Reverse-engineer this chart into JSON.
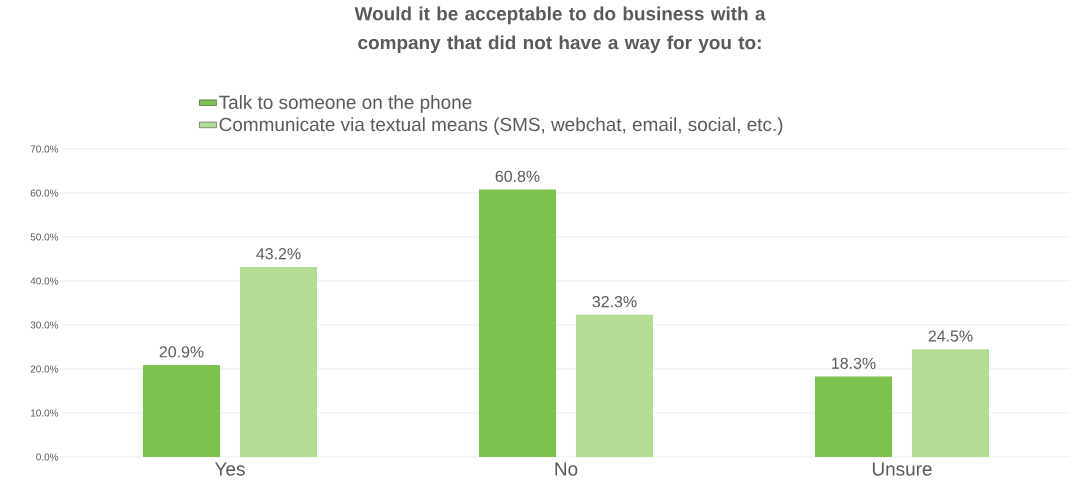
{
  "chart_data": {
    "type": "bar",
    "title": "Would it be acceptable to do business with a company that did not have a way for you to:",
    "categories": [
      "Yes",
      "No",
      "Unsure"
    ],
    "series": [
      {
        "name": "Talk to someone on the phone",
        "color": "#7dc24f",
        "values": [
          20.9,
          60.8,
          18.3
        ],
        "value_labels": [
          "20.9%",
          "60.8%",
          "18.3%"
        ]
      },
      {
        "name": "Communicate via textual means (SMS, webchat, email, social, etc.)",
        "color": "#b4dc94",
        "values": [
          43.2,
          32.3,
          24.5
        ],
        "value_labels": [
          "43.2%",
          "32.3%",
          "24.5%"
        ]
      }
    ],
    "ylim": [
      0,
      70
    ],
    "yticks": [
      {
        "value": 0,
        "label": "0.0%"
      },
      {
        "value": 10,
        "label": "10.0%"
      },
      {
        "value": 20,
        "label": "20.0%"
      },
      {
        "value": 30,
        "label": "30.0%"
      },
      {
        "value": 40,
        "label": "40.0%"
      },
      {
        "value": 50,
        "label": "50.0%"
      },
      {
        "value": 60,
        "label": "60.0%"
      },
      {
        "value": 70,
        "label": "70.0%"
      }
    ],
    "grid": "y",
    "legend": "top"
  }
}
